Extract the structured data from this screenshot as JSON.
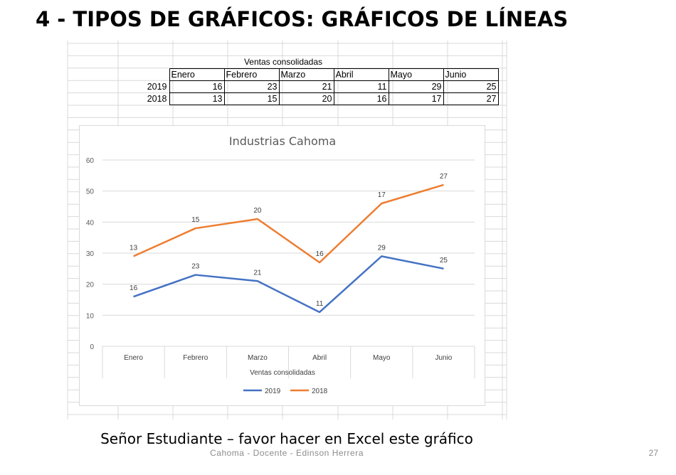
{
  "slide": {
    "title": "4 - TIPOS DE GRÁFICOS:  GRÁFICOS DE LÍNEAS",
    "footer_main": "Señor Estudiante – favor hacer en Excel este gráfico",
    "footer_small": "Cahoma - Docente - Edinson Herrera",
    "page_number": "27"
  },
  "table": {
    "title": "Ventas consolidadas",
    "headers": [
      "Enero",
      "Febrero",
      "Marzo",
      "Abril",
      "Mayo",
      "Junio"
    ],
    "rows": [
      {
        "label": "2019",
        "values": [
          16,
          23,
          21,
          11,
          29,
          25
        ]
      },
      {
        "label": "2018",
        "values": [
          13,
          15,
          20,
          16,
          17,
          27
        ]
      }
    ]
  },
  "chart_data": {
    "type": "line",
    "stacked": true,
    "title": "Industrias Cahoma",
    "xlabel": "Ventas consolidadas",
    "ylabel": "",
    "categories": [
      "Enero",
      "Febrero",
      "Marzo",
      "Abril",
      "Mayo",
      "Junio"
    ],
    "series": [
      {
        "name": "2019",
        "color": "#4472c4",
        "values": [
          16,
          23,
          21,
          11,
          29,
          25
        ]
      },
      {
        "name": "2018",
        "color": "#ed7d31",
        "values": [
          13,
          15,
          20,
          16,
          17,
          27
        ]
      }
    ],
    "yticks": [
      "0",
      "10",
      "20",
      "30",
      "40",
      "50",
      "60"
    ],
    "ylim": [
      0,
      60
    ],
    "grid": true,
    "legend": "bottom"
  }
}
